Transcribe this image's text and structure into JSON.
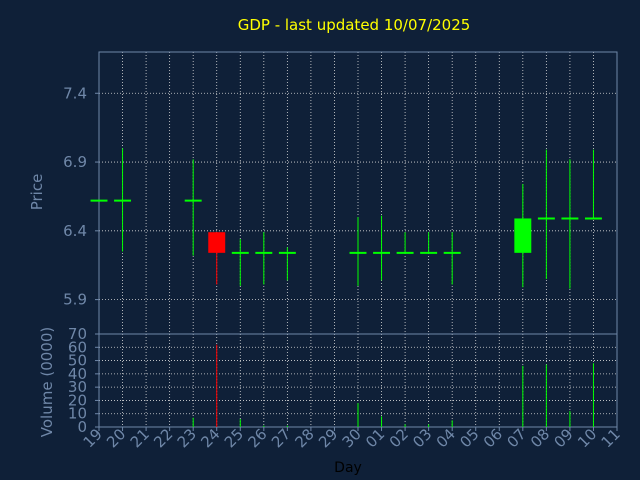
{
  "colors": {
    "background": "#0f2038",
    "axis": "#6f87a8",
    "grid": "#d8d8d8",
    "label": "#6f87a8",
    "title": "#ffff00",
    "up": "#00ff00",
    "down": "#ff0000",
    "xlabel": "#000000"
  },
  "chart_data": {
    "type": "candlestick",
    "title": "GDP - last updated 10/07/2025",
    "xlabel": "Day",
    "price_panel": {
      "ylabel": "Price",
      "ylim": [
        5.65,
        7.7
      ],
      "yticks": [
        "5.9",
        "6.4",
        "6.9",
        "7.4"
      ],
      "grid": true
    },
    "volume_panel": {
      "ylabel": "Volume (0000)",
      "ylim": [
        0,
        70
      ],
      "yticks": [
        "0",
        "10",
        "20",
        "30",
        "40",
        "50",
        "60",
        "70"
      ],
      "grid": true
    },
    "x_tick_labels": [
      "19",
      "20",
      "21",
      "22",
      "23",
      "24",
      "25",
      "26",
      "27",
      "28",
      "29",
      "30",
      "01",
      "02",
      "03",
      "04",
      "05",
      "06",
      "07",
      "08",
      "09",
      "10",
      "11"
    ],
    "candles": [
      {
        "day": "19",
        "open": 6.62,
        "high": 6.62,
        "low": 6.62,
        "close": 6.62,
        "volume": 0
      },
      {
        "day": "20",
        "open": 6.62,
        "high": 7.0,
        "low": 6.25,
        "close": 6.62,
        "volume": 0
      },
      {
        "day": "23",
        "open": 6.62,
        "high": 6.92,
        "low": 6.22,
        "close": 6.62,
        "volume": 7
      },
      {
        "day": "24",
        "open": 6.39,
        "high": 6.39,
        "low": 6.01,
        "close": 6.24,
        "volume": 62
      },
      {
        "day": "25",
        "open": 6.24,
        "high": 6.34,
        "low": 6.0,
        "close": 6.24,
        "volume": 6
      },
      {
        "day": "26",
        "open": 6.24,
        "high": 6.39,
        "low": 6.01,
        "close": 6.24,
        "volume": 1
      },
      {
        "day": "27",
        "open": 6.24,
        "high": 6.28,
        "low": 6.04,
        "close": 6.24,
        "volume": 1
      },
      {
        "day": "30",
        "open": 6.24,
        "high": 6.5,
        "low": 6.0,
        "close": 6.24,
        "volume": 18
      },
      {
        "day": "01",
        "open": 6.24,
        "high": 6.51,
        "low": 6.04,
        "close": 6.24,
        "volume": 8
      },
      {
        "day": "02",
        "open": 6.24,
        "high": 6.39,
        "low": 6.24,
        "close": 6.24,
        "volume": 2
      },
      {
        "day": "03",
        "open": 6.24,
        "high": 6.39,
        "low": 6.24,
        "close": 6.24,
        "volume": 2
      },
      {
        "day": "04",
        "open": 6.24,
        "high": 6.39,
        "low": 6.01,
        "close": 6.24,
        "volume": 5
      },
      {
        "day": "07",
        "open": 6.24,
        "high": 6.74,
        "low": 5.99,
        "close": 6.49,
        "volume": 46
      },
      {
        "day": "08",
        "open": 6.49,
        "high": 6.99,
        "low": 6.05,
        "close": 6.49,
        "volume": 47
      },
      {
        "day": "09",
        "open": 6.49,
        "high": 6.92,
        "low": 5.98,
        "close": 6.49,
        "volume": 12
      },
      {
        "day": "10",
        "open": 6.49,
        "high": 6.99,
        "low": 6.49,
        "close": 6.49,
        "volume": 48
      }
    ]
  }
}
